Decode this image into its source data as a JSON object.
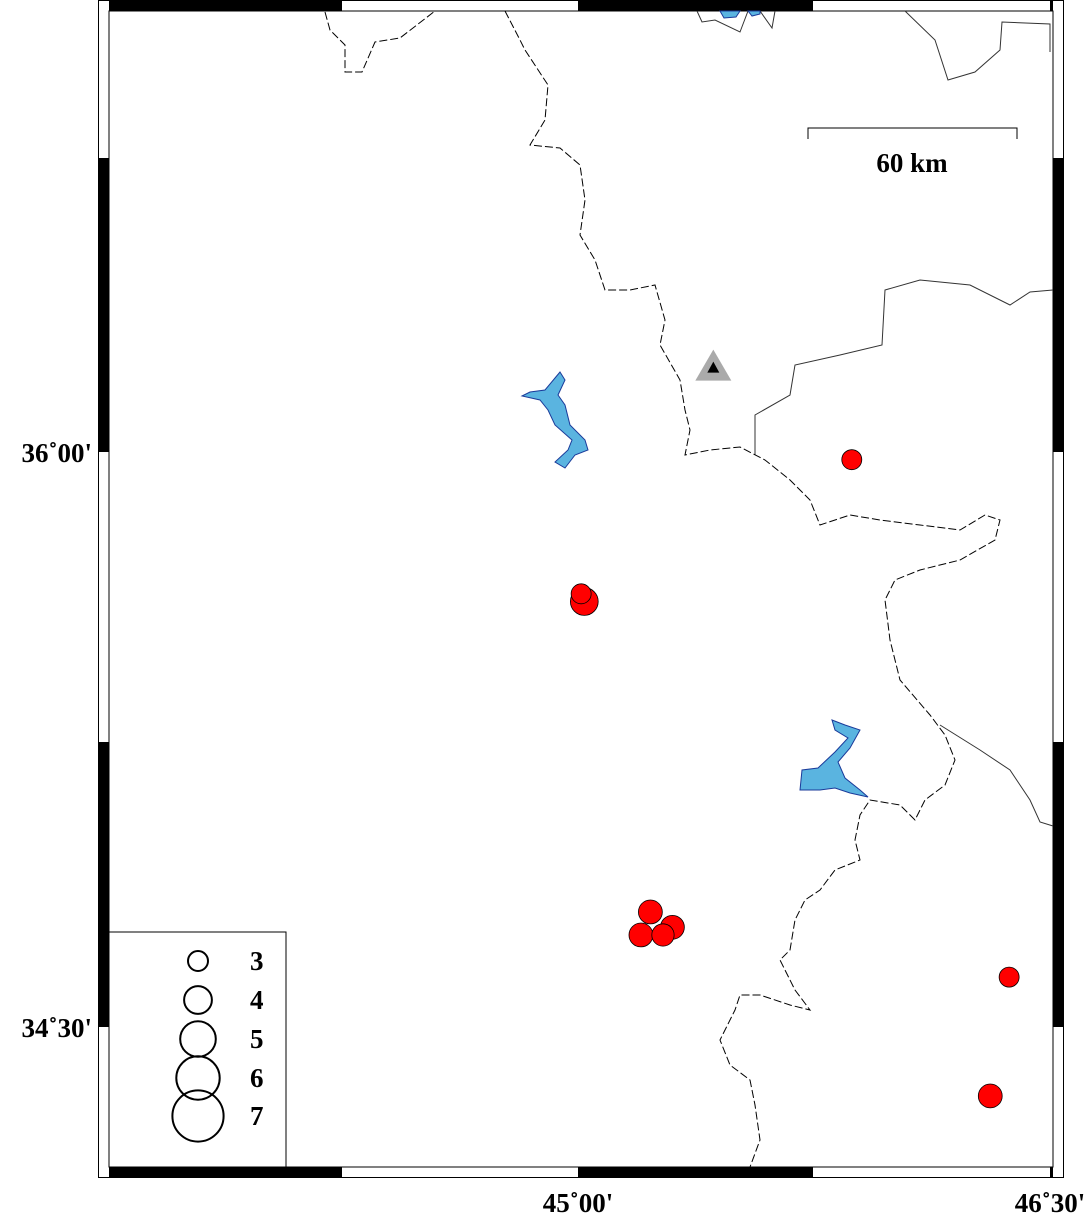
{
  "map": {
    "region": {
      "lon_min": 44.52,
      "lon_max": 46.51,
      "lat_min": 34.13,
      "lat_max": 37.15
    },
    "x_ticks": [
      {
        "lon": 45.0,
        "label": "45˚00'"
      },
      {
        "lon": 46.5,
        "label": "46˚30'"
      }
    ],
    "y_ticks": [
      {
        "lat": 36.0,
        "label": "36˚00'"
      },
      {
        "lat": 34.5,
        "label": "34˚30'"
      }
    ],
    "scale_bar": {
      "label": "60 km",
      "km": 60
    },
    "colors": {
      "event": "#ff0000",
      "lake": "#5ab4e0",
      "lake_outline": "#1a3a9a",
      "station": "#aaaaaa",
      "border": "#000000"
    },
    "station": {
      "lon": 45.43,
      "lat": 36.22,
      "icon": "triangle-station"
    },
    "events": [
      {
        "lon": 45.87,
        "lat": 35.98,
        "mag": 3.0
      },
      {
        "lon": 45.02,
        "lat": 35.61,
        "mag": 4.0
      },
      {
        "lon": 45.01,
        "lat": 35.63,
        "mag": 3.0
      },
      {
        "lon": 45.23,
        "lat": 34.8,
        "mag": 3.5
      },
      {
        "lon": 45.3,
        "lat": 34.76,
        "mag": 3.5
      },
      {
        "lon": 45.2,
        "lat": 34.74,
        "mag": 3.5
      },
      {
        "lon": 45.27,
        "lat": 34.74,
        "mag": 3.3
      },
      {
        "lon": 46.37,
        "lat": 34.63,
        "mag": 3.0
      },
      {
        "lon": 46.31,
        "lat": 34.32,
        "mag": 3.5
      }
    ],
    "legend": {
      "placement": "bottom-left",
      "magnitudes": [
        {
          "mag": 3,
          "label": "3"
        },
        {
          "mag": 4,
          "label": "4"
        },
        {
          "mag": 5,
          "label": "5"
        },
        {
          "mag": 6,
          "label": "6"
        },
        {
          "mag": 7,
          "label": "7"
        }
      ]
    }
  }
}
